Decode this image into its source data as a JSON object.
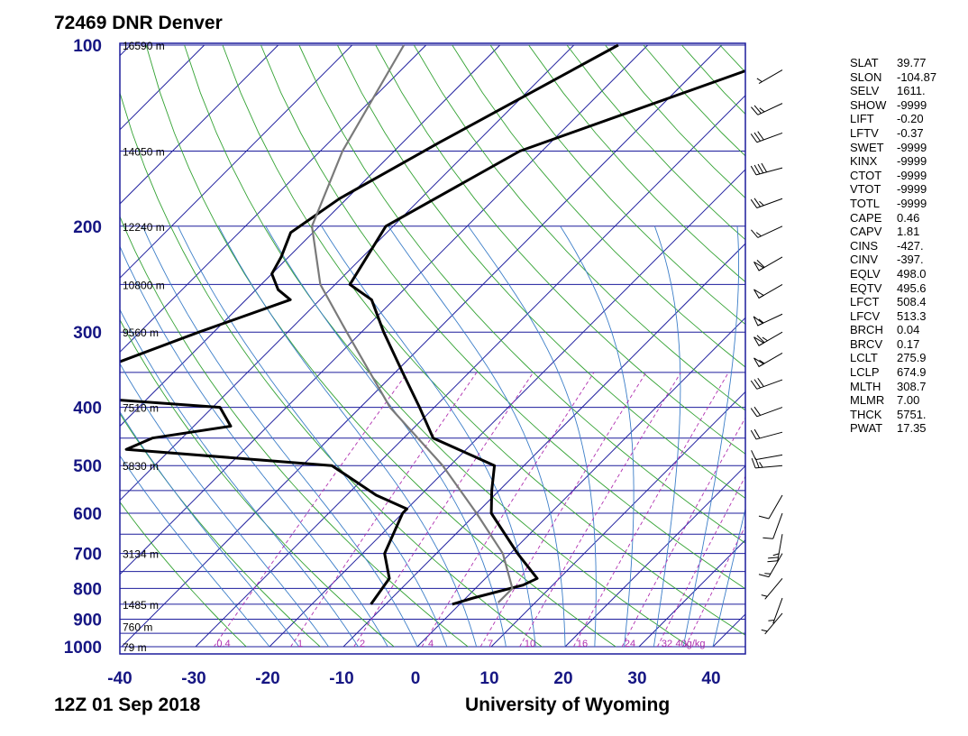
{
  "header": {
    "title": "72469 DNR Denver"
  },
  "footer": {
    "date": "12Z 01 Sep 2018",
    "credit": "University of Wyoming"
  },
  "chart_data": {
    "type": "skew-t",
    "station": "72469 DNR Denver",
    "pressure_axis": {
      "ticks": [
        100,
        200,
        300,
        400,
        500,
        600,
        700,
        800,
        900,
        1000
      ],
      "range": [
        100,
        1000
      ],
      "log_scale": true
    },
    "temperature_axis": {
      "ticks": [
        -40,
        -30,
        -20,
        -10,
        0,
        10,
        20,
        30,
        40
      ],
      "range": [
        -40,
        45
      ]
    },
    "height_labels": [
      {
        "p": 100,
        "text": "16590 m"
      },
      {
        "p": 150,
        "text": "14050 m"
      },
      {
        "p": 200,
        "text": "12240 m"
      },
      {
        "p": 250,
        "text": "10800 m"
      },
      {
        "p": 300,
        "text": "9560 m"
      },
      {
        "p": 400,
        "text": "7510 m"
      },
      {
        "p": 500,
        "text": "5830 m"
      },
      {
        "p": 700,
        "text": "3134 m"
      },
      {
        "p": 850,
        "text": "1485 m"
      },
      {
        "p": 925,
        "text": "760 m"
      },
      {
        "p": 1000,
        "text": "79 m"
      }
    ],
    "mixing_ratio_labels": [
      "0.4",
      "1",
      "2",
      "4",
      "7",
      "10",
      "16",
      "24",
      "32",
      "40g/kg"
    ],
    "series": [
      {
        "role": "temperature",
        "color": "#000000",
        "points": [
          [
            100,
            -27
          ],
          [
            150,
            -53
          ],
          [
            200,
            -61
          ],
          [
            250,
            -58
          ],
          [
            265,
            -53
          ],
          [
            300,
            -47
          ],
          [
            350,
            -39
          ],
          [
            400,
            -32
          ],
          [
            450,
            -26
          ],
          [
            500,
            -14
          ],
          [
            550,
            -11
          ],
          [
            600,
            -8
          ],
          [
            700,
            1
          ],
          [
            770,
            7
          ],
          [
            790,
            6
          ],
          [
            830,
            1
          ],
          [
            850,
            -1
          ]
        ]
      },
      {
        "role": "dewpoint",
        "color": "#000000",
        "points": [
          [
            100,
            -54
          ],
          [
            145,
            -65
          ],
          [
            180,
            -71
          ],
          [
            205,
            -73
          ],
          [
            225,
            -71
          ],
          [
            240,
            -70
          ],
          [
            255,
            -67
          ],
          [
            265,
            -64
          ],
          [
            300,
            -72
          ],
          [
            380,
            -86
          ],
          [
            400,
            -59
          ],
          [
            430,
            -55
          ],
          [
            450,
            -64
          ],
          [
            470,
            -66
          ],
          [
            500,
            -36
          ],
          [
            560,
            -26
          ],
          [
            590,
            -20
          ],
          [
            600,
            -20
          ],
          [
            700,
            -17
          ],
          [
            770,
            -13
          ],
          [
            850,
            -12
          ]
        ]
      },
      {
        "role": "parcel",
        "color": "#7a7a7a",
        "points": [
          [
            100,
            -83
          ],
          [
            150,
            -77
          ],
          [
            200,
            -71
          ],
          [
            250,
            -62
          ],
          [
            300,
            -52
          ],
          [
            400,
            -36
          ],
          [
            500,
            -21
          ],
          [
            600,
            -10
          ],
          [
            700,
            -1
          ],
          [
            800,
            5
          ],
          [
            845,
            5
          ]
        ]
      }
    ],
    "wind_barbs": [
      {
        "p": 110,
        "dir": 240,
        "kt": 5
      },
      {
        "p": 125,
        "dir": 245,
        "kt": 25
      },
      {
        "p": 140,
        "dir": 250,
        "kt": 30
      },
      {
        "p": 160,
        "dir": 255,
        "kt": 40
      },
      {
        "p": 180,
        "dir": 250,
        "kt": 25
      },
      {
        "p": 200,
        "dir": 245,
        "kt": 15
      },
      {
        "p": 225,
        "dir": 240,
        "kt": 60
      },
      {
        "p": 250,
        "dir": 240,
        "kt": 50
      },
      {
        "p": 280,
        "dir": 245,
        "kt": 55
      },
      {
        "p": 300,
        "dir": 240,
        "kt": 65
      },
      {
        "p": 325,
        "dir": 240,
        "kt": 55
      },
      {
        "p": 360,
        "dir": 250,
        "kt": 30
      },
      {
        "p": 400,
        "dir": 250,
        "kt": 20
      },
      {
        "p": 440,
        "dir": 255,
        "kt": 20
      },
      {
        "p": 480,
        "dir": 260,
        "kt": 10
      },
      {
        "p": 500,
        "dir": 265,
        "kt": 25
      },
      {
        "p": 560,
        "dir": 210,
        "kt": 10
      },
      {
        "p": 600,
        "dir": 200,
        "kt": 10
      },
      {
        "p": 650,
        "dir": 190,
        "kt": 25
      },
      {
        "p": 700,
        "dir": 210,
        "kt": 15
      },
      {
        "p": 770,
        "dir": 220,
        "kt": 5
      },
      {
        "p": 830,
        "dir": 200,
        "kt": 5
      },
      {
        "p": 880,
        "dir": 220,
        "kt": 5
      }
    ],
    "colors": {
      "frame": "#1c1c9c",
      "isobar": "#1c1c9c",
      "isotherm": "#2323a0",
      "dry_adiabat": "#33a233",
      "moist_adiabat": "#3c7ec8",
      "mixing_ratio": "#b030b0",
      "axis_label": "#161683"
    }
  },
  "indices": [
    {
      "key": "SLAT",
      "value": "39.77"
    },
    {
      "key": "SLON",
      "value": "-104.87"
    },
    {
      "key": "SELV",
      "value": "1611."
    },
    {
      "key": "SHOW",
      "value": "-9999"
    },
    {
      "key": "LIFT",
      "value": "-0.20"
    },
    {
      "key": "LFTV",
      "value": "-0.37"
    },
    {
      "key": "SWET",
      "value": "-9999"
    },
    {
      "key": "KINX",
      "value": "-9999"
    },
    {
      "key": "CTOT",
      "value": "-9999"
    },
    {
      "key": "VTOT",
      "value": "-9999"
    },
    {
      "key": "TOTL",
      "value": "-9999"
    },
    {
      "key": "CAPE",
      "value": "0.46"
    },
    {
      "key": "CAPV",
      "value": "1.81"
    },
    {
      "key": "CINS",
      "value": "-427."
    },
    {
      "key": "CINV",
      "value": "-397."
    },
    {
      "key": "EQLV",
      "value": "498.0"
    },
    {
      "key": "EQTV",
      "value": "495.6"
    },
    {
      "key": "LFCT",
      "value": "508.4"
    },
    {
      "key": "LFCV",
      "value": "513.3"
    },
    {
      "key": "BRCH",
      "value": "0.04"
    },
    {
      "key": "BRCV",
      "value": "0.17"
    },
    {
      "key": "LCLT",
      "value": "275.9"
    },
    {
      "key": "LCLP",
      "value": "674.9"
    },
    {
      "key": "MLTH",
      "value": "308.7"
    },
    {
      "key": "MLMR",
      "value": "7.00"
    },
    {
      "key": "THCK",
      "value": "5751."
    },
    {
      "key": "PWAT",
      "value": "17.35"
    }
  ]
}
